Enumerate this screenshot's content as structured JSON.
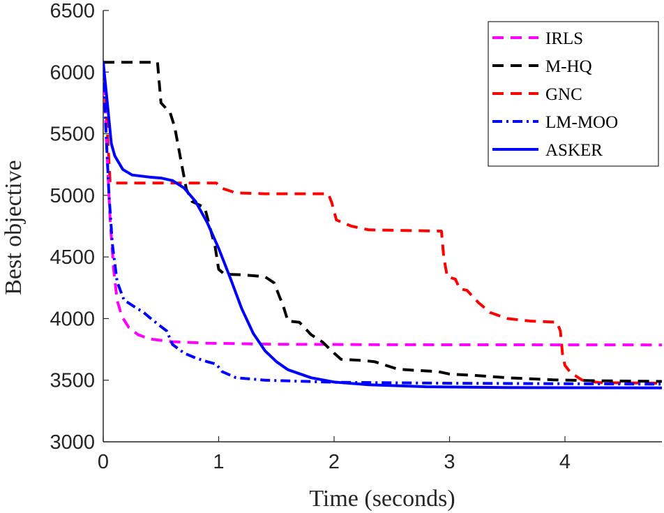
{
  "chart_data": {
    "type": "line",
    "title": "",
    "xlabel": "Time (seconds)",
    "ylabel": "Best objective",
    "xlim": [
      0,
      4.85
    ],
    "ylim": [
      3000,
      6500
    ],
    "xticks": [
      0,
      1,
      2,
      3,
      4
    ],
    "yticks": [
      3000,
      3500,
      4000,
      4500,
      5000,
      5500,
      6000,
      6500
    ],
    "grid": false,
    "legend_position": "top-right",
    "series": [
      {
        "name": "IRLS",
        "color": "#ff00ff",
        "style": "dashed",
        "points": [
          [
            0,
            6050
          ],
          [
            0.03,
            5400
          ],
          [
            0.06,
            4800
          ],
          [
            0.09,
            4400
          ],
          [
            0.12,
            4150
          ],
          [
            0.16,
            4020
          ],
          [
            0.22,
            3930
          ],
          [
            0.3,
            3870
          ],
          [
            0.4,
            3835
          ],
          [
            0.6,
            3812
          ],
          [
            0.9,
            3800
          ],
          [
            1.5,
            3792
          ],
          [
            2.5,
            3788
          ],
          [
            4.85,
            3786
          ]
        ]
      },
      {
        "name": "M-HQ",
        "color": "#000000",
        "style": "dashed",
        "points": [
          [
            0,
            6080
          ],
          [
            0.47,
            6080
          ],
          [
            0.5,
            5750
          ],
          [
            0.58,
            5670
          ],
          [
            0.62,
            5550
          ],
          [
            0.68,
            5250
          ],
          [
            0.72,
            5050
          ],
          [
            0.77,
            4950
          ],
          [
            0.88,
            4900
          ],
          [
            0.97,
            4580
          ],
          [
            1.0,
            4400
          ],
          [
            1.05,
            4360
          ],
          [
            1.2,
            4355
          ],
          [
            1.4,
            4340
          ],
          [
            1.48,
            4290
          ],
          [
            1.56,
            4100
          ],
          [
            1.6,
            3980
          ],
          [
            1.7,
            3970
          ],
          [
            1.8,
            3870
          ],
          [
            1.9,
            3810
          ],
          [
            2.0,
            3720
          ],
          [
            2.06,
            3670
          ],
          [
            2.25,
            3660
          ],
          [
            2.35,
            3650
          ],
          [
            2.55,
            3590
          ],
          [
            2.7,
            3580
          ],
          [
            2.9,
            3570
          ],
          [
            3.0,
            3550
          ],
          [
            3.2,
            3540
          ],
          [
            3.5,
            3520
          ],
          [
            3.9,
            3503
          ],
          [
            4.3,
            3495
          ],
          [
            4.85,
            3490
          ]
        ]
      },
      {
        "name": "GNC",
        "color": "#ff0000",
        "style": "dashed",
        "points": [
          [
            0,
            6080
          ],
          [
            0.03,
            5600
          ],
          [
            0.06,
            5100
          ],
          [
            0.98,
            5100
          ],
          [
            1.02,
            5060
          ],
          [
            1.15,
            5020
          ],
          [
            1.4,
            5013
          ],
          [
            1.95,
            5013
          ],
          [
            1.98,
            4940
          ],
          [
            2.02,
            4800
          ],
          [
            2.15,
            4750
          ],
          [
            2.3,
            4720
          ],
          [
            2.93,
            4710
          ],
          [
            2.95,
            4500
          ],
          [
            2.98,
            4340
          ],
          [
            3.05,
            4320
          ],
          [
            3.09,
            4240
          ],
          [
            3.15,
            4230
          ],
          [
            3.2,
            4180
          ],
          [
            3.25,
            4130
          ],
          [
            3.35,
            4050
          ],
          [
            3.5,
            4000
          ],
          [
            3.7,
            3980
          ],
          [
            3.93,
            3970
          ],
          [
            3.96,
            3900
          ],
          [
            3.98,
            3700
          ],
          [
            4.0,
            3620
          ],
          [
            4.05,
            3560
          ],
          [
            4.15,
            3500
          ],
          [
            4.3,
            3480
          ],
          [
            4.85,
            3475
          ]
        ]
      },
      {
        "name": "LM-MOO",
        "color": "#0000ff",
        "style": "dashdot",
        "points": [
          [
            0,
            6080
          ],
          [
            0.02,
            5600
          ],
          [
            0.05,
            5000
          ],
          [
            0.08,
            4600
          ],
          [
            0.12,
            4300
          ],
          [
            0.18,
            4150
          ],
          [
            0.28,
            4090
          ],
          [
            0.35,
            4050
          ],
          [
            0.4,
            4010
          ],
          [
            0.48,
            3950
          ],
          [
            0.55,
            3900
          ],
          [
            0.6,
            3790
          ],
          [
            0.7,
            3720
          ],
          [
            0.8,
            3680
          ],
          [
            0.9,
            3650
          ],
          [
            0.98,
            3630
          ],
          [
            1.03,
            3570
          ],
          [
            1.15,
            3520
          ],
          [
            1.4,
            3500
          ],
          [
            2.0,
            3483
          ],
          [
            3.0,
            3475
          ],
          [
            4.85,
            3468
          ]
        ]
      },
      {
        "name": "ASKER",
        "color": "#0000ff",
        "style": "solid",
        "points": [
          [
            0,
            6080
          ],
          [
            0.03,
            5800
          ],
          [
            0.07,
            5420
          ],
          [
            0.1,
            5320
          ],
          [
            0.17,
            5210
          ],
          [
            0.25,
            5165
          ],
          [
            0.4,
            5148
          ],
          [
            0.5,
            5140
          ],
          [
            0.6,
            5120
          ],
          [
            0.7,
            5060
          ],
          [
            0.8,
            4950
          ],
          [
            0.9,
            4780
          ],
          [
            1.0,
            4570
          ],
          [
            1.1,
            4330
          ],
          [
            1.2,
            4080
          ],
          [
            1.3,
            3880
          ],
          [
            1.4,
            3740
          ],
          [
            1.5,
            3650
          ],
          [
            1.6,
            3585
          ],
          [
            1.8,
            3520
          ],
          [
            2.0,
            3485
          ],
          [
            2.3,
            3463
          ],
          [
            2.8,
            3447
          ],
          [
            3.5,
            3440
          ],
          [
            4.85,
            3437
          ]
        ]
      }
    ]
  }
}
